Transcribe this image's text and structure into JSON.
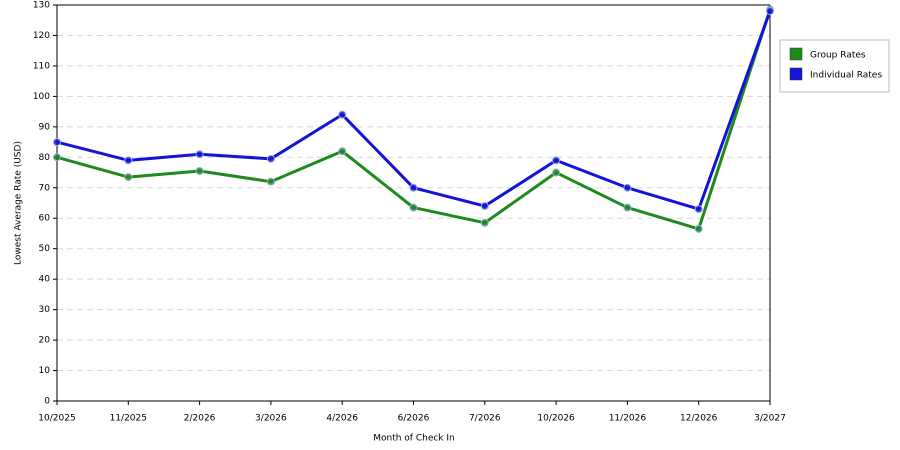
{
  "chart_data": {
    "type": "line",
    "x_label": "Month of Check In",
    "y_label": "Lowest Average Rate (USD)",
    "categories": [
      "10/2025",
      "11/2025",
      "2/2026",
      "3/2026",
      "4/2026",
      "6/2026",
      "7/2026",
      "10/2026",
      "11/2026",
      "12/2026",
      "3/2027"
    ],
    "series": [
      {
        "name": "Group Rates",
        "color": "#1e8a1e",
        "values": [
          80,
          73.5,
          75.5,
          72,
          82,
          63.5,
          58.5,
          75,
          63.5,
          56.5,
          128.5
        ]
      },
      {
        "name": "Individual Rates",
        "color": "#1414d8",
        "values": [
          85,
          79,
          81,
          79.5,
          94,
          70,
          64,
          79,
          70,
          63,
          128
        ]
      }
    ],
    "ylim": [
      0,
      130
    ],
    "yticks": [
      0,
      10,
      20,
      30,
      40,
      50,
      60,
      70,
      80,
      90,
      100,
      110,
      120,
      130
    ],
    "grid": true,
    "legend": "right"
  }
}
